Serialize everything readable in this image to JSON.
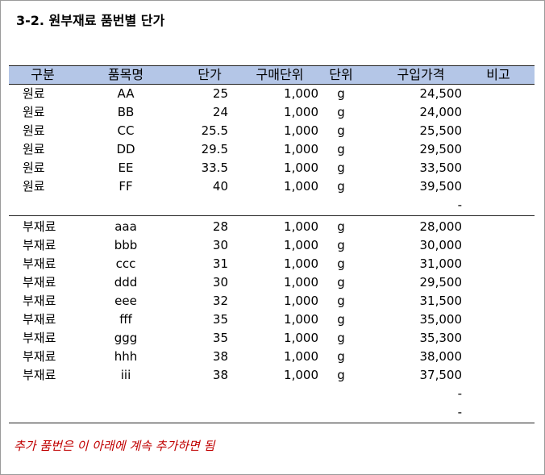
{
  "title": "3-2. 원부재료 품번별 단가",
  "headers": [
    "구분",
    "품목명",
    "단가",
    "구매단위",
    "단위",
    "구입가격",
    "비고"
  ],
  "raw_rows": [
    {
      "category": "원료",
      "item": "AA",
      "unit_price": "25",
      "purchase_unit": "1,000",
      "unit": "g",
      "price": "24,500",
      "note": ""
    },
    {
      "category": "원료",
      "item": "BB",
      "unit_price": "24",
      "purchase_unit": "1,000",
      "unit": "g",
      "price": "24,000",
      "note": ""
    },
    {
      "category": "원료",
      "item": "CC",
      "unit_price": "25.5",
      "purchase_unit": "1,000",
      "unit": "g",
      "price": "25,500",
      "note": ""
    },
    {
      "category": "원료",
      "item": "DD",
      "unit_price": "29.5",
      "purchase_unit": "1,000",
      "unit": "g",
      "price": "29,500",
      "note": ""
    },
    {
      "category": "원료",
      "item": "EE",
      "unit_price": "33.5",
      "purchase_unit": "1,000",
      "unit": "g",
      "price": "33,500",
      "note": ""
    },
    {
      "category": "원료",
      "item": "FF",
      "unit_price": "40",
      "purchase_unit": "1,000",
      "unit": "g",
      "price": "39,500",
      "note": ""
    },
    {
      "category": "",
      "item": "",
      "unit_price": "",
      "purchase_unit": "",
      "unit": "",
      "price": "-",
      "note": ""
    }
  ],
  "sub_rows": [
    {
      "category": "부재료",
      "item": "aaa",
      "unit_price": "28",
      "purchase_unit": "1,000",
      "unit": "g",
      "price": "28,000",
      "note": ""
    },
    {
      "category": "부재료",
      "item": "bbb",
      "unit_price": "30",
      "purchase_unit": "1,000",
      "unit": "g",
      "price": "30,000",
      "note": ""
    },
    {
      "category": "부재료",
      "item": "ccc",
      "unit_price": "31",
      "purchase_unit": "1,000",
      "unit": "g",
      "price": "31,000",
      "note": ""
    },
    {
      "category": "부재료",
      "item": "ddd",
      "unit_price": "30",
      "purchase_unit": "1,000",
      "unit": "g",
      "price": "29,500",
      "note": ""
    },
    {
      "category": "부재료",
      "item": "eee",
      "unit_price": "32",
      "purchase_unit": "1,000",
      "unit": "g",
      "price": "31,500",
      "note": ""
    },
    {
      "category": "부재료",
      "item": "fff",
      "unit_price": "35",
      "purchase_unit": "1,000",
      "unit": "g",
      "price": "35,000",
      "note": ""
    },
    {
      "category": "부재료",
      "item": "ggg",
      "unit_price": "35",
      "purchase_unit": "1,000",
      "unit": "g",
      "price": "35,300",
      "note": ""
    },
    {
      "category": "부재료",
      "item": "hhh",
      "unit_price": "38",
      "purchase_unit": "1,000",
      "unit": "g",
      "price": "38,000",
      "note": ""
    },
    {
      "category": "부재료",
      "item": "iii",
      "unit_price": "38",
      "purchase_unit": "1,000",
      "unit": "g",
      "price": "37,500",
      "note": ""
    },
    {
      "category": "",
      "item": "",
      "unit_price": "",
      "purchase_unit": "",
      "unit": "",
      "price": "-",
      "note": ""
    },
    {
      "category": "",
      "item": "",
      "unit_price": "",
      "purchase_unit": "",
      "unit": "",
      "price": "-",
      "note": ""
    }
  ],
  "footnote": "추가 품번은 이 아래에 계속 추가하면 됨",
  "colors": {
    "header_bg": "#b4c6e7",
    "note_color": "#c00000"
  }
}
